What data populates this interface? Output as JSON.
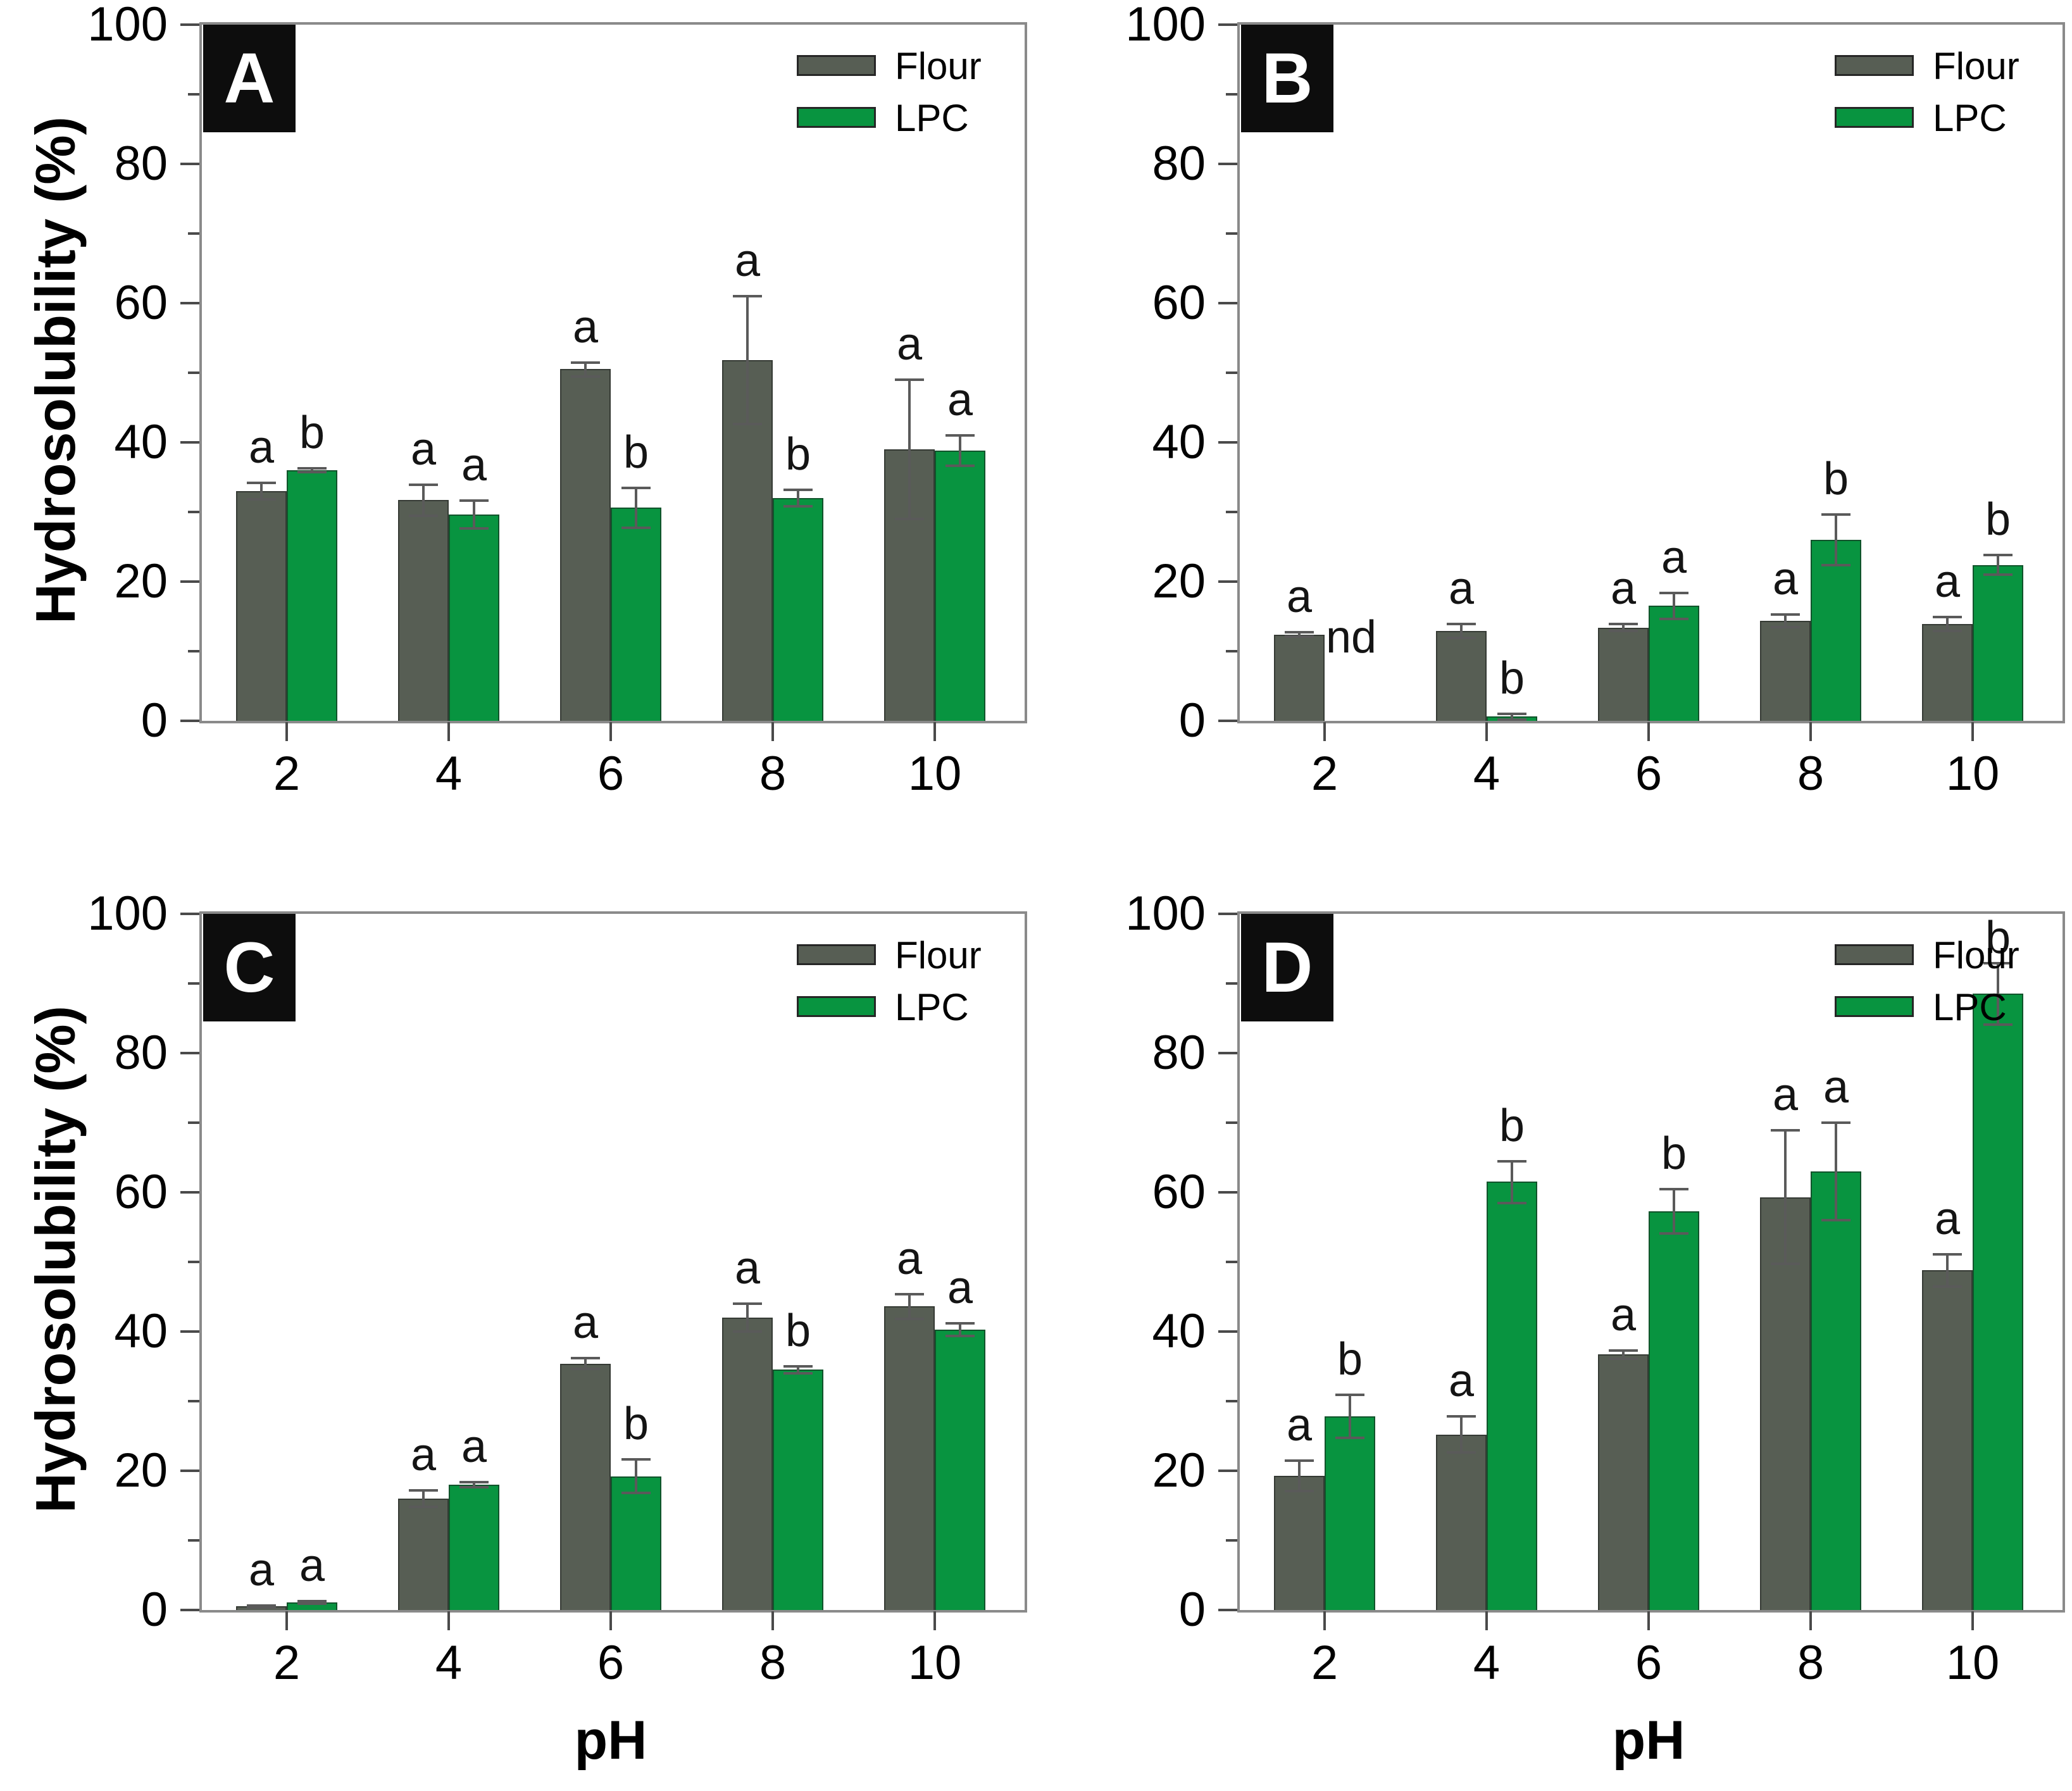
{
  "figure": {
    "ylabel": "Hydrosolubility (%)",
    "xlabel": "pH",
    "legend_labels": [
      "Flour",
      "LPC"
    ],
    "series_colors": [
      "#575E54",
      "#089440"
    ],
    "nd_label": "nd",
    "panel_labels": [
      "A",
      "B",
      "C",
      "D"
    ],
    "frame_color": "#8a8a8a",
    "error_bar_color": "#5a5a5a",
    "panel_letter_bg": "#0d0d0d",
    "panel_letter_fg": "#ffffff"
  },
  "chart_data": [
    {
      "panel": "A",
      "type": "bar",
      "categories": [
        "2",
        "4",
        "6",
        "8",
        "10"
      ],
      "yticks": [
        0,
        20,
        40,
        60,
        80,
        100
      ],
      "yticks_minor": [
        10,
        30,
        50,
        70,
        90
      ],
      "ylim": [
        0,
        100
      ],
      "show_ylabel": true,
      "show_xlabel": false,
      "legend_position": "top-right",
      "series": [
        {
          "name": "Flour",
          "values": [
            33.0,
            31.7,
            50.5,
            51.8,
            39.0
          ],
          "errors": [
            1.2,
            2.2,
            1.0,
            9.2,
            10.0
          ],
          "letters": [
            "a",
            "a",
            "a",
            "a",
            "a"
          ]
        },
        {
          "name": "LPC",
          "values": [
            36.0,
            29.6,
            30.6,
            32.0,
            38.8
          ],
          "errors": [
            0.3,
            2.0,
            2.9,
            1.2,
            2.2
          ],
          "letters": [
            "b",
            "a",
            "b",
            "b",
            "a"
          ]
        }
      ]
    },
    {
      "panel": "B",
      "type": "bar",
      "categories": [
        "2",
        "4",
        "6",
        "8",
        "10"
      ],
      "yticks": [
        0,
        20,
        40,
        60,
        80,
        100
      ],
      "yticks_minor": [
        10,
        30,
        50,
        70,
        90
      ],
      "ylim": [
        0,
        100
      ],
      "show_ylabel": false,
      "show_xlabel": false,
      "legend_position": "top-right",
      "series": [
        {
          "name": "Flour",
          "values": [
            12.4,
            12.9,
            13.4,
            14.4,
            13.9
          ],
          "errors": [
            0.3,
            1.0,
            0.5,
            0.9,
            1.0
          ],
          "letters": [
            "a",
            "a",
            "a",
            "a",
            "a"
          ]
        },
        {
          "name": "LPC",
          "values": [
            null,
            0.6,
            16.5,
            26.0,
            22.4
          ],
          "errors": [
            null,
            0.4,
            1.9,
            3.6,
            1.4
          ],
          "letters": [
            "nd",
            "b",
            "a",
            "b",
            "b"
          ]
        }
      ]
    },
    {
      "panel": "C",
      "type": "bar",
      "categories": [
        "2",
        "4",
        "6",
        "8",
        "10"
      ],
      "yticks": [
        0,
        20,
        40,
        60,
        80,
        100
      ],
      "yticks_minor": [
        10,
        30,
        50,
        70,
        90
      ],
      "ylim": [
        0,
        100
      ],
      "show_ylabel": true,
      "show_xlabel": true,
      "legend_position": "top-right",
      "series": [
        {
          "name": "Flour",
          "values": [
            0.5,
            16.0,
            35.4,
            42.0,
            43.6
          ],
          "errors": [
            0.15,
            1.2,
            0.8,
            2.0,
            1.8
          ],
          "letters": [
            "a",
            "a",
            "a",
            "a",
            "a"
          ]
        },
        {
          "name": "LPC",
          "values": [
            1.1,
            18.0,
            19.2,
            34.5,
            40.3
          ],
          "errors": [
            0.15,
            0.4,
            2.4,
            0.5,
            0.9
          ],
          "letters": [
            "a",
            "a",
            "b",
            "b",
            "a"
          ]
        }
      ]
    },
    {
      "panel": "D",
      "type": "bar",
      "categories": [
        "2",
        "4",
        "6",
        "8",
        "10"
      ],
      "yticks": [
        0,
        20,
        40,
        60,
        80,
        100
      ],
      "yticks_minor": [
        10,
        30,
        50,
        70,
        90
      ],
      "ylim": [
        0,
        100
      ],
      "show_ylabel": false,
      "show_xlabel": true,
      "legend_position": "top-right",
      "series": [
        {
          "name": "Flour",
          "values": [
            19.3,
            25.2,
            36.7,
            59.3,
            48.8
          ],
          "errors": [
            2.2,
            2.6,
            0.6,
            9.6,
            2.3
          ],
          "letters": [
            "a",
            "a",
            "a",
            "a",
            "a"
          ]
        },
        {
          "name": "LPC",
          "values": [
            27.8,
            61.5,
            57.3,
            63.0,
            88.5
          ],
          "errors": [
            3.1,
            3.0,
            3.2,
            7.0,
            4.4
          ],
          "letters": [
            "b",
            "b",
            "b",
            "a",
            "b"
          ]
        }
      ]
    }
  ]
}
